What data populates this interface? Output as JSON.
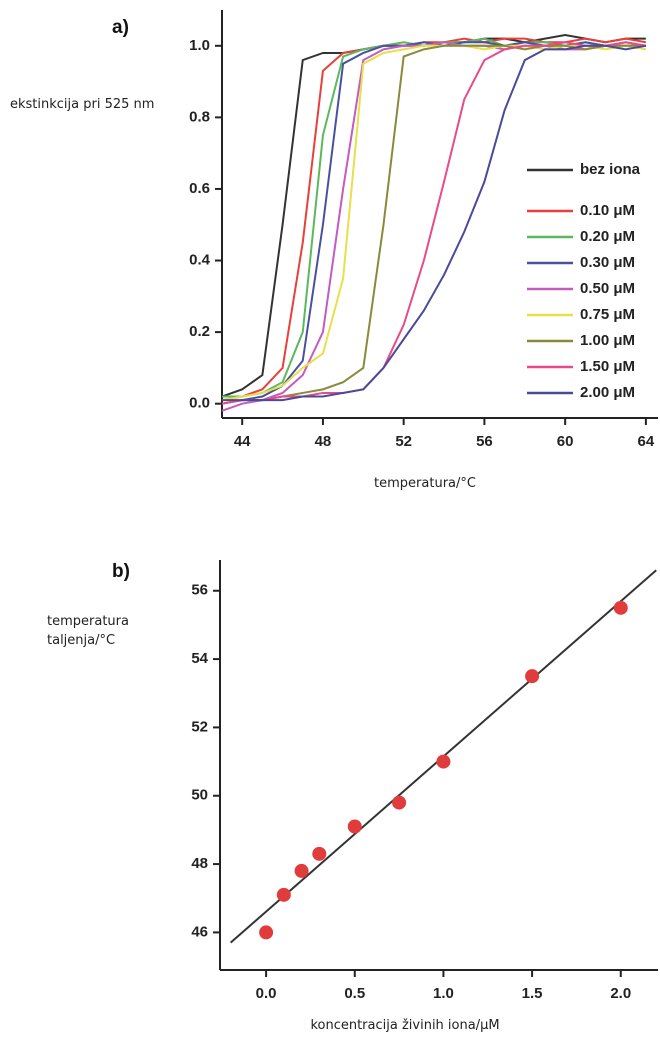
{
  "chart_data": [
    {
      "type": "line",
      "panel": "a)",
      "ylabel": "ekstinkcija pri 525 nm",
      "xlabel": "temperatura/°C",
      "x": [
        43,
        44,
        45,
        46,
        47,
        48,
        49,
        50,
        51,
        52,
        53,
        54,
        55,
        56,
        57,
        58,
        59,
        60,
        61,
        62,
        63,
        64
      ],
      "series": [
        {
          "name": "bez iona",
          "color": "#333333",
          "values": [
            0.02,
            0.04,
            0.08,
            0.5,
            0.96,
            0.98,
            0.98,
            0.99,
            1.0,
            1.0,
            1.0,
            1.01,
            1.01,
            1.02,
            1.02,
            1.01,
            1.02,
            1.03,
            1.02,
            1.01,
            1.02,
            1.02
          ]
        },
        {
          "name": "0.10 μM",
          "color": "#e8403a",
          "values": [
            0.01,
            0.02,
            0.04,
            0.1,
            0.45,
            0.93,
            0.98,
            0.99,
            1.0,
            1.0,
            1.01,
            1.01,
            1.02,
            1.01,
            1.02,
            1.02,
            1.01,
            1.01,
            1.02,
            1.01,
            1.02,
            1.01
          ]
        },
        {
          "name": "0.20 μM",
          "color": "#5cb85c",
          "values": [
            0.02,
            0.02,
            0.03,
            0.06,
            0.2,
            0.75,
            0.97,
            0.99,
            1.0,
            1.01,
            1.0,
            1.01,
            1.01,
            1.02,
            1.0,
            1.01,
            1.01,
            1.0,
            1.01,
            1.0,
            1.01,
            1.0
          ]
        },
        {
          "name": "0.30 μM",
          "color": "#4a50a0",
          "values": [
            0.0,
            0.01,
            0.02,
            0.05,
            0.12,
            0.5,
            0.95,
            0.98,
            1.0,
            1.0,
            1.01,
            1.0,
            1.01,
            1.01,
            1.0,
            1.01,
            1.0,
            1.0,
            1.01,
            1.0,
            1.0,
            1.0
          ]
        },
        {
          "name": "0.50 μM",
          "color": "#c45cc0",
          "values": [
            -0.02,
            0.0,
            0.01,
            0.03,
            0.08,
            0.2,
            0.6,
            0.96,
            0.99,
            1.0,
            1.0,
            1.01,
            1.0,
            1.0,
            0.99,
            1.0,
            1.0,
            0.99,
            0.99,
            1.0,
            1.0,
            1.0
          ]
        },
        {
          "name": "0.75 μM",
          "color": "#e6e04a",
          "values": [
            0.01,
            0.02,
            0.03,
            0.05,
            0.1,
            0.14,
            0.35,
            0.95,
            0.98,
            0.99,
            1.0,
            1.0,
            1.0,
            0.99,
            1.0,
            1.0,
            0.99,
            1.0,
            1.0,
            0.99,
            1.0,
            0.99
          ]
        },
        {
          "name": "1.00 μM",
          "color": "#8a8a3a",
          "values": [
            0.0,
            0.01,
            0.01,
            0.02,
            0.03,
            0.04,
            0.06,
            0.1,
            0.5,
            0.97,
            0.99,
            1.0,
            1.0,
            1.0,
            1.0,
            0.99,
            1.0,
            1.0,
            0.99,
            1.0,
            1.0,
            1.0
          ]
        },
        {
          "name": "1.50 μM",
          "color": "#e84a8a",
          "values": [
            0.0,
            0.01,
            0.01,
            0.02,
            0.02,
            0.03,
            0.03,
            0.04,
            0.1,
            0.22,
            0.4,
            0.62,
            0.85,
            0.96,
            0.99,
            1.0,
            1.0,
            1.01,
            1.0,
            1.0,
            1.01,
            1.0
          ]
        },
        {
          "name": "2.00 μM",
          "color": "#4a4a9a",
          "values": [
            0.01,
            0.01,
            0.01,
            0.01,
            0.02,
            0.02,
            0.03,
            0.04,
            0.1,
            0.18,
            0.26,
            0.36,
            0.48,
            0.62,
            0.82,
            0.96,
            0.99,
            0.99,
            1.0,
            1.0,
            0.99,
            1.0
          ]
        }
      ],
      "xlim": [
        43,
        64.6
      ],
      "ylim": [
        -0.04,
        1.1
      ],
      "xticks": [
        44,
        48,
        52,
        56,
        60,
        64
      ],
      "yticks": [
        {
          "value": 0,
          "label": "0.0"
        },
        {
          "value": 0.2,
          "label": "0.2"
        },
        {
          "value": 0.4,
          "label": "0.4"
        },
        {
          "value": 0.6,
          "label": "0.6"
        },
        {
          "value": 0.8,
          "label": "0.8"
        },
        {
          "value": 1,
          "label": "1.0"
        }
      ],
      "legend": "right"
    },
    {
      "type": "scatter",
      "panel": "b)",
      "ylabel": "temperatura taljenja/°C",
      "xlabel": "koncentracija živinih iona/μM",
      "x": [
        0,
        0.1,
        0.2,
        0.3,
        0.5,
        0.75,
        1.0,
        1.5,
        2.0
      ],
      "values": [
        46,
        47.1,
        47.8,
        48.3,
        49.1,
        49.8,
        51,
        53.5,
        55.5
      ],
      "color": "#e03c3c",
      "fit_line": {
        "x": [
          -0.2,
          2.2
        ],
        "values": [
          45.7,
          56.6
        ],
        "color": "#333333"
      },
      "xlim": [
        -0.26,
        2.21
      ],
      "ylim": [
        44.9,
        56.9
      ],
      "xticks": [
        {
          "value": 0,
          "label": "0.0"
        },
        {
          "value": 0.5,
          "label": "0.5"
        },
        {
          "value": 1,
          "label": "1.0"
        },
        {
          "value": 1.5,
          "label": "1.5"
        },
        {
          "value": 2,
          "label": "2.0"
        }
      ],
      "yticks": [
        46,
        48,
        50,
        52,
        54,
        56
      ]
    }
  ]
}
